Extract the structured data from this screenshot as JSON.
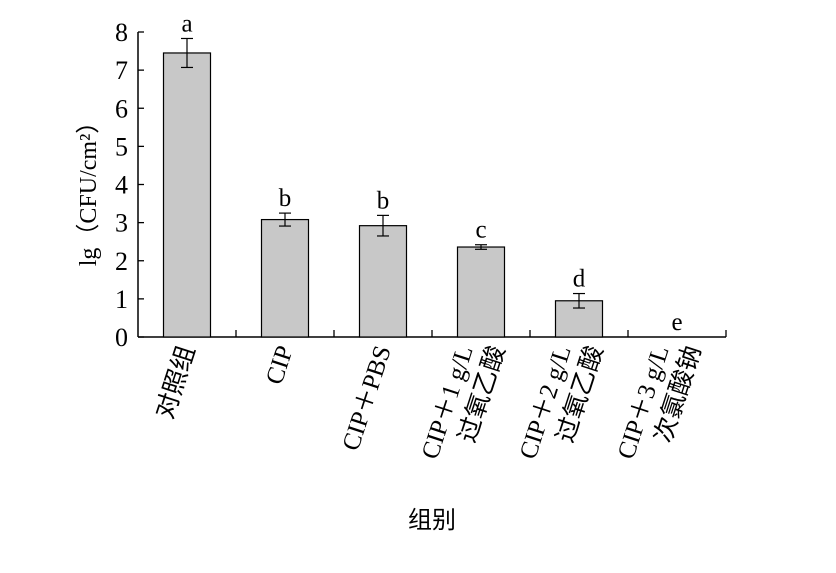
{
  "chart_data": {
    "type": "bar",
    "xlabel": "组别",
    "ylabel": "lg（CFU/cm²）",
    "ylim": [
      0,
      8
    ],
    "yticks": [
      0,
      1,
      2,
      3,
      4,
      5,
      6,
      7,
      8
    ],
    "grid": false,
    "categories": [
      [
        "对照组"
      ],
      [
        "CIP"
      ],
      [
        "CIP＋PBS"
      ],
      [
        "CIP＋1 g/L",
        "过氧乙酸"
      ],
      [
        "CIP＋2 g/L",
        "过氧乙酸"
      ],
      [
        "CIP＋3 g/L",
        "次氯酸钠"
      ]
    ],
    "values": [
      7.45,
      3.08,
      2.92,
      2.36,
      0.95,
      0
    ],
    "errors": [
      0.38,
      0.17,
      0.27,
      0.06,
      0.19,
      0
    ],
    "significance": [
      "a",
      "b",
      "b",
      "c",
      "d",
      "e"
    ],
    "bar_color": "#c8c8c8",
    "edge_color": "#000000"
  }
}
